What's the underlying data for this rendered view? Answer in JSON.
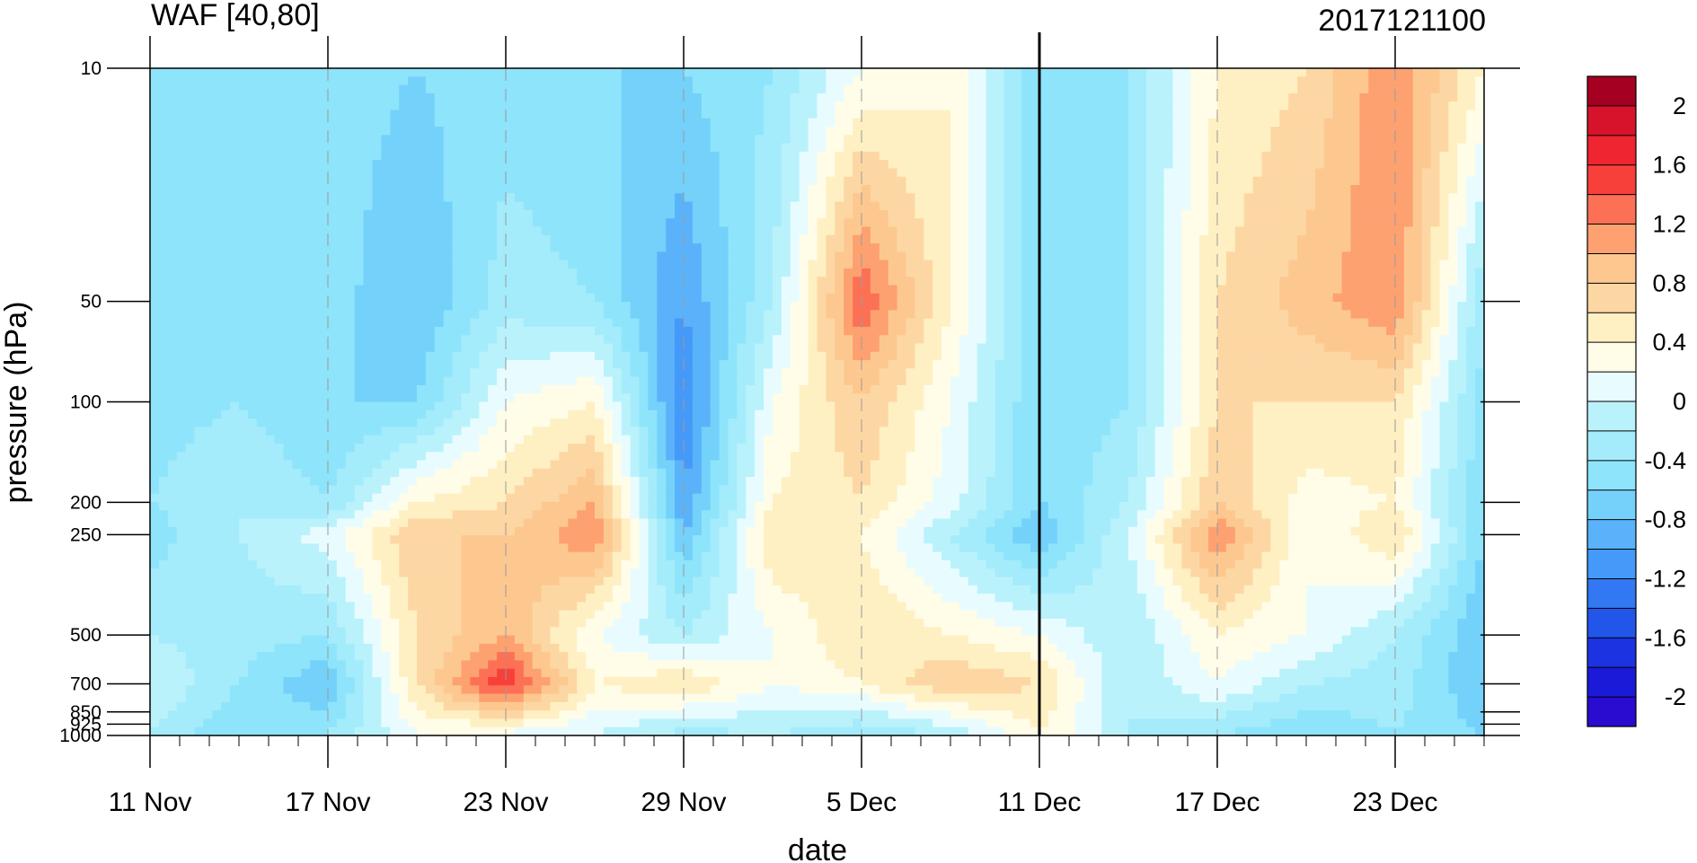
{
  "chart_data": {
    "type": "heatmap",
    "title": "WAF [40,80]",
    "subtitle": "2017121100",
    "xlabel": "date",
    "ylabel": "pressure (hPa)",
    "x_tick_labels": [
      "11 Nov",
      "17 Nov",
      "23 Nov",
      "29 Nov",
      "5 Dec",
      "11 Dec",
      "17 Dec",
      "23 Dec"
    ],
    "x_tick_dates": [
      "2017-11-11",
      "2017-11-17",
      "2017-11-23",
      "2017-11-29",
      "2017-12-05",
      "2017-12-11",
      "2017-12-17",
      "2017-12-23"
    ],
    "xlim": [
      "2017-11-11",
      "2017-12-26"
    ],
    "y_tick_labels": [
      "10",
      "50",
      "100",
      "200",
      "250",
      "500",
      "700",
      "850",
      "925",
      "1000"
    ],
    "y_tick_values": [
      10,
      50,
      100,
      200,
      250,
      500,
      700,
      850,
      925,
      1000
    ],
    "ylim": [
      1000,
      10
    ],
    "y_scale": "log",
    "reference_line_date": "2017-12-11",
    "colorbar": {
      "tick_labels": [
        "2",
        "1.6",
        "1.2",
        "0.8",
        "0.4",
        "0",
        "-0.4",
        "-0.8",
        "-1.2",
        "-1.6",
        "-2"
      ],
      "levels": [
        2.2,
        2.0,
        1.8,
        1.6,
        1.4,
        1.2,
        1.0,
        0.8,
        0.6,
        0.4,
        0.2,
        0.0,
        -0.2,
        -0.4,
        -0.6,
        -0.8,
        -1.0,
        -1.2,
        -1.4,
        -1.6,
        -1.8,
        -2.0,
        -2.2
      ],
      "colors": [
        "#a50021",
        "#d7132b",
        "#f02532",
        "#f8403a",
        "#fc7155",
        "#fda171",
        "#fdc890",
        "#fdd7a3",
        "#fef0c3",
        "#fffce8",
        "#e8fcff",
        "#baf2fc",
        "#a4ecfb",
        "#8ee4fb",
        "#74d1fa",
        "#5ab3fa",
        "#4599f8",
        "#3278f2",
        "#2255ea",
        "#1c33e2",
        "#1a1ad8",
        "#2a0bd0"
      ]
    },
    "field": {
      "dates": [
        "2017-11-11",
        "2017-11-14",
        "2017-11-17",
        "2017-11-20",
        "2017-11-23",
        "2017-11-26",
        "2017-11-29",
        "2017-12-02",
        "2017-12-05",
        "2017-12-08",
        "2017-12-11",
        "2017-12-14",
        "2017-12-17",
        "2017-12-20",
        "2017-12-23",
        "2017-12-26"
      ],
      "pressure": [
        10,
        50,
        100,
        200,
        250,
        500,
        700,
        1000
      ],
      "values": [
        [
          -0.6,
          -0.4,
          -0.5,
          -0.6,
          -0.5,
          -0.6,
          -0.6,
          -0.4,
          0.2,
          0.4,
          -0.6,
          -0.4,
          0.4,
          0.6,
          1.2,
          0.4
        ],
        [
          -0.6,
          -0.6,
          -0.5,
          -0.8,
          -0.3,
          -0.4,
          -1.0,
          -0.2,
          1.4,
          0.4,
          -0.6,
          -0.4,
          0.6,
          0.9,
          1.2,
          -0.4
        ],
        [
          -0.5,
          -0.4,
          -0.6,
          -0.6,
          0.2,
          0.4,
          -1.2,
          0.2,
          0.8,
          0.2,
          -0.6,
          -0.4,
          0.6,
          0.6,
          0.6,
          -0.5
        ],
        [
          -0.4,
          -0.2,
          -0.4,
          0.4,
          0.6,
          1.0,
          -1.0,
          0.4,
          0.6,
          0.1,
          -0.6,
          -0.2,
          0.8,
          0.3,
          0.4,
          -0.6
        ],
        [
          -0.5,
          -0.2,
          0.1,
          0.8,
          0.8,
          1.2,
          -0.8,
          0.6,
          0.4,
          -0.2,
          -0.8,
          0.0,
          1.2,
          0.2,
          0.6,
          -0.6
        ],
        [
          -0.2,
          -0.3,
          -0.4,
          0.6,
          1.0,
          0.2,
          -0.2,
          0.2,
          0.6,
          0.4,
          0.2,
          -0.2,
          0.4,
          0.2,
          -0.2,
          -0.8
        ],
        [
          0.0,
          -0.4,
          -0.8,
          0.6,
          1.6,
          0.4,
          0.6,
          0.2,
          0.4,
          0.8,
          0.6,
          -0.2,
          0.2,
          -0.2,
          -0.3,
          -0.8
        ],
        [
          -0.2,
          -0.6,
          -0.4,
          0.2,
          0.1,
          0.0,
          -0.3,
          -0.2,
          -0.4,
          -0.2,
          0.4,
          -0.2,
          -0.4,
          -0.6,
          -0.4,
          -0.6
        ]
      ]
    }
  }
}
